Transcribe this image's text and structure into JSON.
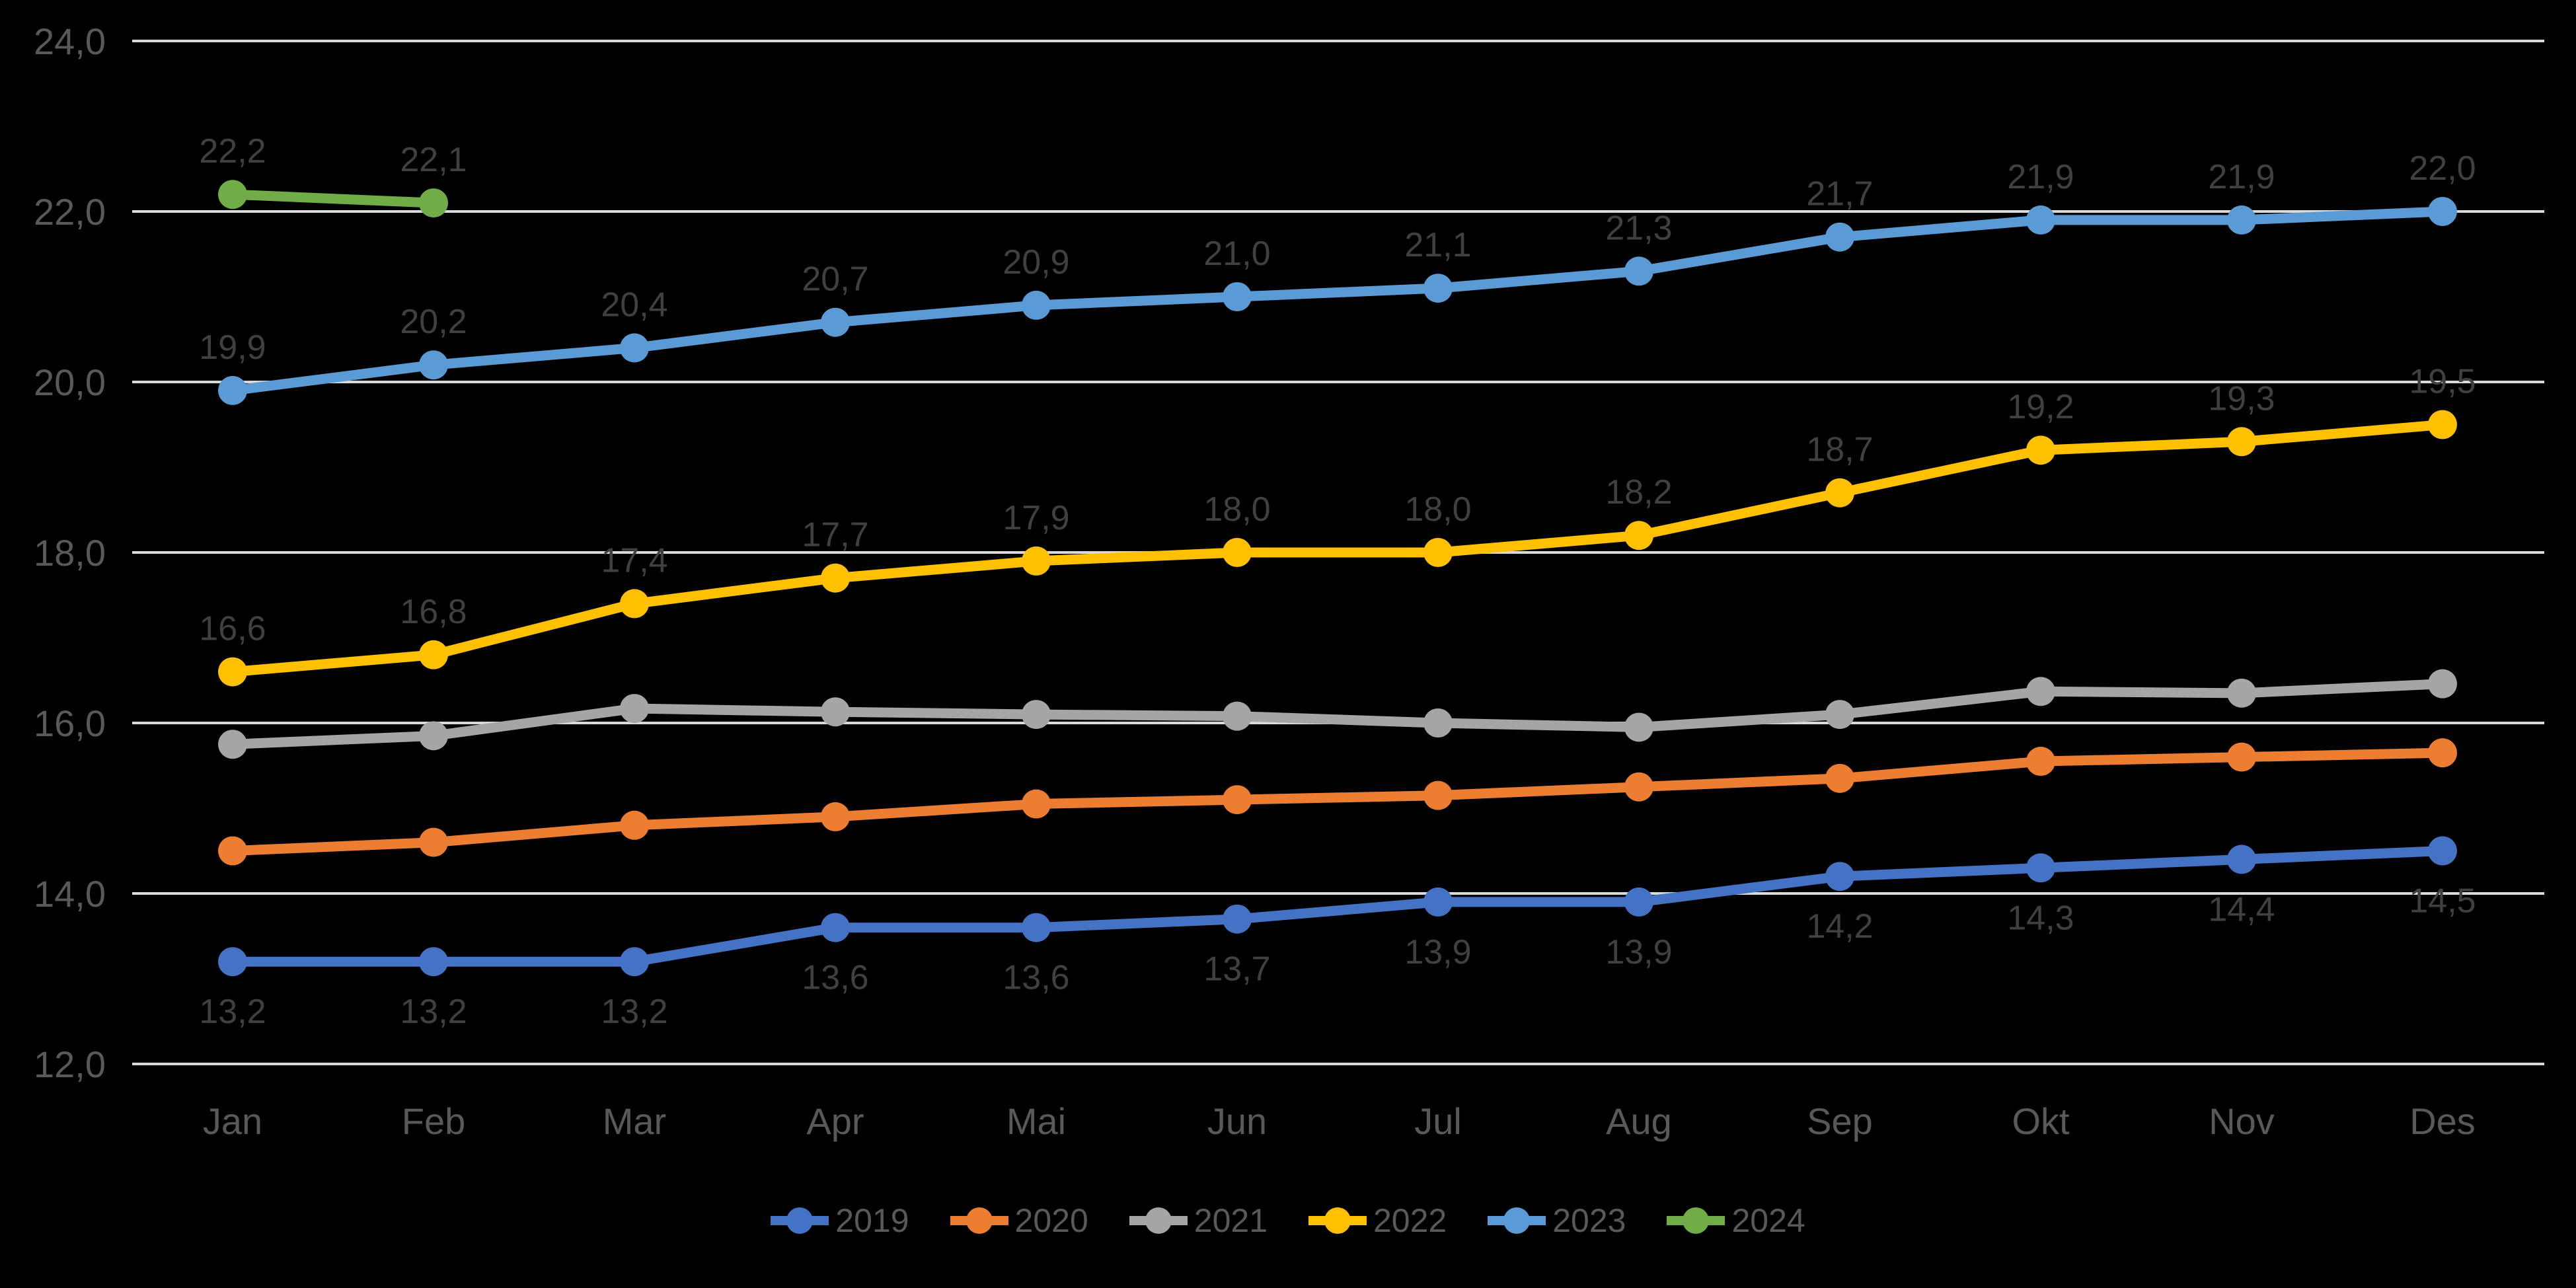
{
  "chart_data": {
    "type": "line",
    "title": "",
    "categories": [
      "Jan",
      "Feb",
      "Mar",
      "Apr",
      "Mai",
      "Jun",
      "Jul",
      "Aug",
      "Sep",
      "Okt",
      "Nov",
      "Des"
    ],
    "series": [
      {
        "name": "2019",
        "color": "#4472C4",
        "values": [
          13.2,
          13.2,
          13.2,
          13.6,
          13.6,
          13.7,
          13.9,
          13.9,
          14.2,
          14.3,
          14.4,
          14.5
        ],
        "labels": [
          "13,2",
          "13,2",
          "13,2",
          "13,6",
          "13,6",
          "13,7",
          "13,9",
          "13,9",
          "14,2",
          "14,3",
          "14,4",
          "14,5"
        ],
        "labels_visible": true,
        "label_position": "below"
      },
      {
        "name": "2020",
        "color": "#ED7D31",
        "values": [
          14.5,
          14.6,
          14.8,
          14.9,
          15.05,
          15.1,
          15.15,
          15.25,
          15.35,
          15.55,
          15.6,
          15.65
        ],
        "labels": [],
        "labels_visible": false,
        "label_position": "above"
      },
      {
        "name": "2021",
        "color": "#A5A5A5",
        "values": [
          15.75,
          15.85,
          16.17,
          16.13,
          16.1,
          16.08,
          16.0,
          15.95,
          16.1,
          16.37,
          16.35,
          16.46
        ],
        "labels": [],
        "labels_visible": false,
        "label_position": "above"
      },
      {
        "name": "2022",
        "color": "#FFC000",
        "values": [
          16.6,
          16.8,
          17.4,
          17.7,
          17.9,
          18.0,
          18.0,
          18.2,
          18.7,
          19.2,
          19.3,
          19.5
        ],
        "labels": [
          "16,6",
          "16,8",
          "17,4",
          "17,7",
          "17,9",
          "18,0",
          "18,0",
          "18,2",
          "18,7",
          "19,2",
          "19,3",
          "19,5"
        ],
        "labels_visible": true,
        "label_position": "above"
      },
      {
        "name": "2023",
        "color": "#5B9BD5",
        "values": [
          19.9,
          20.2,
          20.4,
          20.7,
          20.9,
          21.0,
          21.1,
          21.3,
          21.7,
          21.9,
          21.9,
          22.0
        ],
        "labels": [
          "19,9",
          "20,2",
          "20,4",
          "20,7",
          "20,9",
          "21,0",
          "21,1",
          "21,3",
          "21,7",
          "21,9",
          "21,9",
          "22,0"
        ],
        "labels_visible": true,
        "label_position": "above"
      },
      {
        "name": "2024",
        "color": "#70AD47",
        "values": [
          22.2,
          22.1
        ],
        "labels": [
          "22,2",
          "22,1"
        ],
        "labels_visible": true,
        "label_position": "above"
      }
    ],
    "ylim": [
      12,
      24
    ],
    "ytick_step": 2,
    "ytick_labels": [
      "12,0",
      "14,0",
      "16,0",
      "18,0",
      "20,0",
      "22,0",
      "24,0"
    ],
    "decimal_separator": ",",
    "grid": true,
    "legend_position": "bottom",
    "colors": {
      "background": "#000000",
      "gridline": "#D9D9D9",
      "axis_text": "#595959",
      "data_label_text": "#404040",
      "legend_text": "#595959"
    }
  },
  "legend": {
    "items": [
      {
        "label": "2019",
        "color": "#4472C4"
      },
      {
        "label": "2020",
        "color": "#ED7D31"
      },
      {
        "label": "2021",
        "color": "#A5A5A5"
      },
      {
        "label": "2022",
        "color": "#FFC000"
      },
      {
        "label": "2023",
        "color": "#5B9BD5"
      },
      {
        "label": "2024",
        "color": "#70AD47"
      }
    ]
  }
}
